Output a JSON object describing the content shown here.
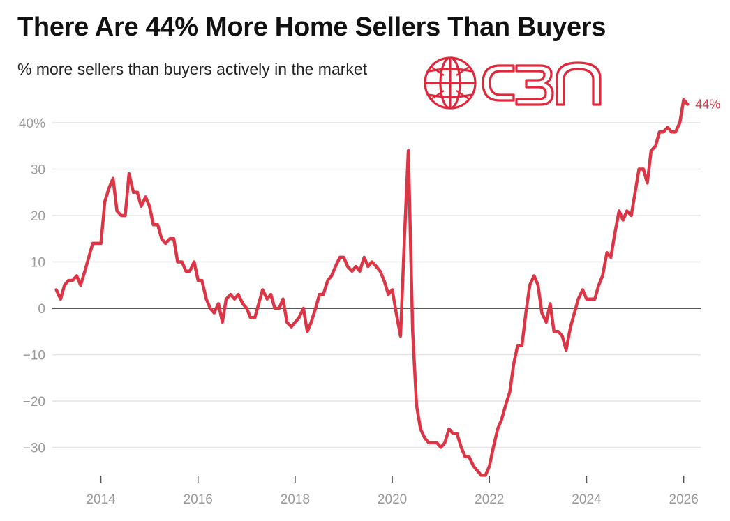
{
  "chart_title": "There Are 44% More Home Sellers Than Buyers",
  "chart_subtitle": "% more sellers than buyers actively in the market",
  "logo": {
    "text": "CBN",
    "icon": "globe-icon",
    "color": "#e0283c"
  },
  "colors": {
    "series": "#dc3545",
    "grid": "#e4e4e4",
    "zero_line": "#222222",
    "tick_text": "#9a9a9a"
  },
  "chart_data": {
    "type": "line",
    "title": "There Are 44% More Home Sellers Than Buyers",
    "subtitle": "% more sellers than buyers actively in the market",
    "xlabel": "",
    "ylabel": "",
    "xlim": [
      2013.0,
      2026.35
    ],
    "ylim": [
      -36,
      46
    ],
    "x_ticks": [
      2014,
      2016,
      2018,
      2020,
      2022,
      2024,
      2026
    ],
    "x_tick_labels": [
      "2014",
      "2016",
      "2018",
      "2020",
      "2022",
      "2024",
      "2026"
    ],
    "y_ticks": [
      40,
      30,
      20,
      10,
      0,
      -10,
      -20,
      -30
    ],
    "y_tick_labels": [
      "40%",
      "30",
      "20",
      "10",
      "0",
      "−10",
      "−20",
      "−30"
    ],
    "grid": true,
    "end_label": "44%",
    "series": [
      {
        "values": [
          [
            2013.08,
            4
          ],
          [
            2013.17,
            2
          ],
          [
            2013.25,
            5
          ],
          [
            2013.33,
            6
          ],
          [
            2013.42,
            6
          ],
          [
            2013.5,
            7
          ],
          [
            2013.58,
            5
          ],
          [
            2013.67,
            8
          ],
          [
            2013.75,
            11
          ],
          [
            2013.83,
            14
          ],
          [
            2013.92,
            14
          ],
          [
            2014.0,
            14
          ],
          [
            2014.08,
            23
          ],
          [
            2014.17,
            26
          ],
          [
            2014.25,
            28
          ],
          [
            2014.33,
            21
          ],
          [
            2014.42,
            20
          ],
          [
            2014.5,
            20
          ],
          [
            2014.58,
            29
          ],
          [
            2014.67,
            25
          ],
          [
            2014.75,
            25
          ],
          [
            2014.83,
            22
          ],
          [
            2014.92,
            24
          ],
          [
            2015.0,
            22
          ],
          [
            2015.08,
            18
          ],
          [
            2015.17,
            18
          ],
          [
            2015.25,
            15
          ],
          [
            2015.33,
            14
          ],
          [
            2015.42,
            15
          ],
          [
            2015.5,
            15
          ],
          [
            2015.58,
            10
          ],
          [
            2015.67,
            10
          ],
          [
            2015.75,
            8
          ],
          [
            2015.83,
            8
          ],
          [
            2015.92,
            10
          ],
          [
            2016.0,
            6
          ],
          [
            2016.08,
            6
          ],
          [
            2016.17,
            2
          ],
          [
            2016.25,
            0
          ],
          [
            2016.33,
            -1
          ],
          [
            2016.42,
            1
          ],
          [
            2016.5,
            -3
          ],
          [
            2016.58,
            2
          ],
          [
            2016.67,
            3
          ],
          [
            2016.75,
            2
          ],
          [
            2016.83,
            3
          ],
          [
            2016.92,
            1
          ],
          [
            2017.0,
            0
          ],
          [
            2017.08,
            -2
          ],
          [
            2017.17,
            -2
          ],
          [
            2017.25,
            1
          ],
          [
            2017.33,
            4
          ],
          [
            2017.42,
            2
          ],
          [
            2017.5,
            3
          ],
          [
            2017.58,
            0
          ],
          [
            2017.67,
            0
          ],
          [
            2017.75,
            2
          ],
          [
            2017.83,
            -3
          ],
          [
            2017.92,
            -4
          ],
          [
            2018.0,
            -3
          ],
          [
            2018.08,
            -2
          ],
          [
            2018.17,
            0
          ],
          [
            2018.25,
            -5
          ],
          [
            2018.33,
            -3
          ],
          [
            2018.42,
            0
          ],
          [
            2018.5,
            3
          ],
          [
            2018.58,
            3
          ],
          [
            2018.67,
            6
          ],
          [
            2018.75,
            7
          ],
          [
            2018.83,
            9
          ],
          [
            2018.92,
            11
          ],
          [
            2019.0,
            11
          ],
          [
            2019.08,
            9
          ],
          [
            2019.17,
            8
          ],
          [
            2019.25,
            9
          ],
          [
            2019.33,
            8
          ],
          [
            2019.42,
            11
          ],
          [
            2019.5,
            9
          ],
          [
            2019.58,
            10
          ],
          [
            2019.67,
            9
          ],
          [
            2019.75,
            8
          ],
          [
            2019.83,
            6
          ],
          [
            2019.92,
            3
          ],
          [
            2020.0,
            4
          ],
          [
            2020.08,
            -1
          ],
          [
            2020.17,
            -6
          ],
          [
            2020.25,
            15
          ],
          [
            2020.33,
            34
          ],
          [
            2020.42,
            -5
          ],
          [
            2020.5,
            -21
          ],
          [
            2020.58,
            -26
          ],
          [
            2020.67,
            -28
          ],
          [
            2020.75,
            -29
          ],
          [
            2020.83,
            -29
          ],
          [
            2020.92,
            -29
          ],
          [
            2021.0,
            -30
          ],
          [
            2021.08,
            -29
          ],
          [
            2021.17,
            -26
          ],
          [
            2021.25,
            -27
          ],
          [
            2021.33,
            -27
          ],
          [
            2021.42,
            -30
          ],
          [
            2021.5,
            -32
          ],
          [
            2021.58,
            -32
          ],
          [
            2021.67,
            -34
          ],
          [
            2021.75,
            -35
          ],
          [
            2021.83,
            -36
          ],
          [
            2021.92,
            -36
          ],
          [
            2022.0,
            -34
          ],
          [
            2022.08,
            -30
          ],
          [
            2022.17,
            -26
          ],
          [
            2022.25,
            -24
          ],
          [
            2022.33,
            -21
          ],
          [
            2022.42,
            -18
          ],
          [
            2022.5,
            -12
          ],
          [
            2022.58,
            -8
          ],
          [
            2022.67,
            -8
          ],
          [
            2022.75,
            -1
          ],
          [
            2022.83,
            5
          ],
          [
            2022.92,
            7
          ],
          [
            2023.0,
            5
          ],
          [
            2023.08,
            -1
          ],
          [
            2023.17,
            -3
          ],
          [
            2023.25,
            1
          ],
          [
            2023.33,
            -5
          ],
          [
            2023.42,
            -5
          ],
          [
            2023.5,
            -6
          ],
          [
            2023.58,
            -9
          ],
          [
            2023.67,
            -4
          ],
          [
            2023.75,
            -1
          ],
          [
            2023.83,
            2
          ],
          [
            2023.92,
            4
          ],
          [
            2024.0,
            2
          ],
          [
            2024.08,
            2
          ],
          [
            2024.17,
            2
          ],
          [
            2024.25,
            5
          ],
          [
            2024.33,
            7
          ],
          [
            2024.42,
            12
          ],
          [
            2024.5,
            11
          ],
          [
            2024.58,
            16
          ],
          [
            2024.67,
            21
          ],
          [
            2024.75,
            19
          ],
          [
            2024.83,
            21
          ],
          [
            2024.92,
            20
          ],
          [
            2025.0,
            25
          ],
          [
            2025.08,
            30
          ],
          [
            2025.17,
            30
          ],
          [
            2025.25,
            27
          ],
          [
            2025.33,
            34
          ],
          [
            2025.42,
            35
          ],
          [
            2025.5,
            38
          ],
          [
            2025.58,
            38
          ],
          [
            2025.67,
            39
          ],
          [
            2025.75,
            38
          ],
          [
            2025.83,
            38
          ],
          [
            2025.92,
            40
          ],
          [
            2026.0,
            45
          ],
          [
            2026.08,
            44
          ]
        ]
      }
    ]
  }
}
